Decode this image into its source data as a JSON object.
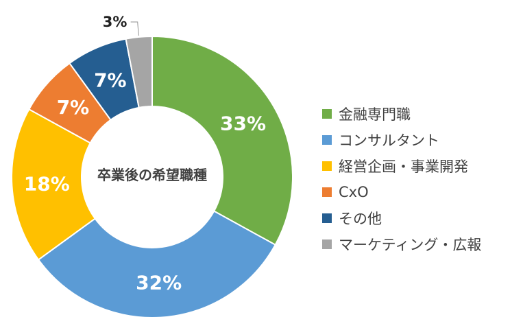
{
  "chart_data": {
    "type": "pie",
    "subtype": "donut",
    "title": "卒業後の希望職種",
    "categories": [
      "金融専門職",
      "コンサルタント",
      "経営企画・事業開発",
      "CxO",
      "その他",
      "マーケティング・広報"
    ],
    "values": [
      33,
      32,
      18,
      7,
      7,
      3
    ],
    "labels": [
      "33%",
      "32%",
      "18%",
      "7%",
      "7%",
      "3%"
    ],
    "colors": [
      "#70AD47",
      "#5B9BD5",
      "#FFC000",
      "#ED7D31",
      "#255E91",
      "#A5A5A5"
    ],
    "legend_position": "right",
    "start_angle": "top, clockwise"
  }
}
